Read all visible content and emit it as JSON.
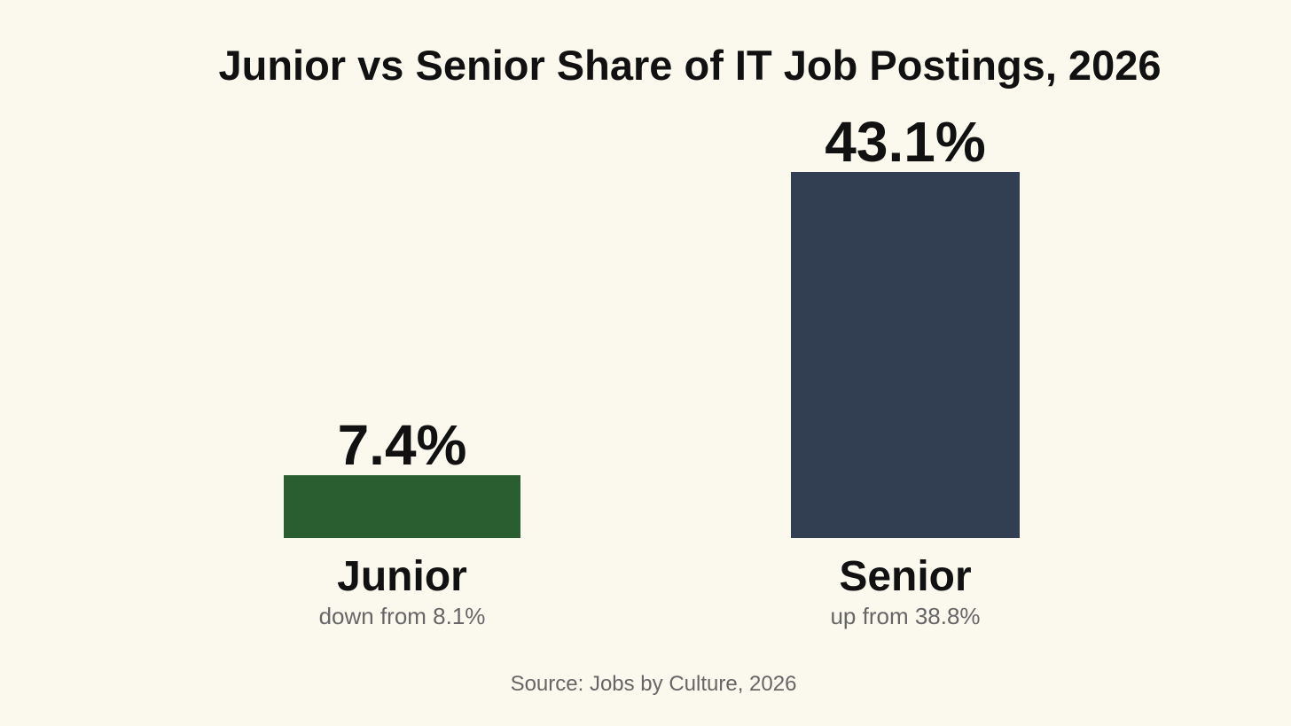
{
  "chart_data": {
    "type": "bar",
    "title": "Junior vs Senior Share of IT Job Postings, 2026",
    "categories": [
      "Junior",
      "Senior"
    ],
    "values": [
      7.4,
      43.1
    ],
    "value_labels": [
      "7.4%",
      "43.1%"
    ],
    "colors": [
      "#2a5e30",
      "#323e52"
    ],
    "notes": [
      "down from 8.1%",
      "up from 38.8%"
    ],
    "source": "Source: Jobs by Culture, 2026"
  }
}
